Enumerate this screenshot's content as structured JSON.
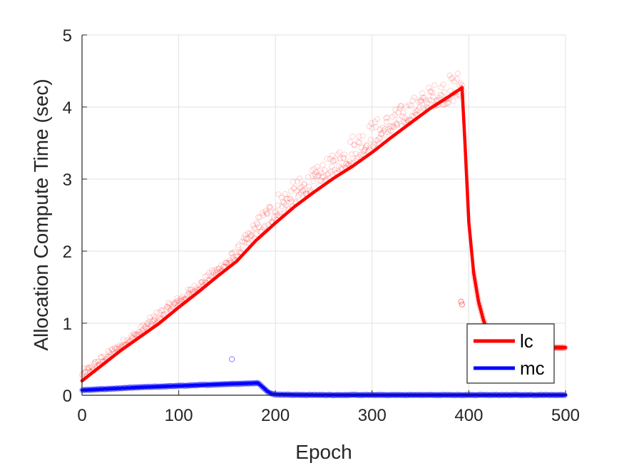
{
  "chart_data": {
    "type": "line",
    "title": "",
    "xlabel": "Epoch",
    "ylabel": "Allocation Compute Time (sec)",
    "xlim": [
      0,
      500
    ],
    "ylim": [
      0,
      5
    ],
    "xticks": [
      0,
      100,
      200,
      300,
      400,
      500
    ],
    "yticks": [
      0,
      1,
      2,
      3,
      4,
      5
    ],
    "grid": true,
    "legend_position": "bottom-right",
    "colors": {
      "lc": "#ff0000",
      "mc": "#0000ff"
    },
    "series": [
      {
        "name": "lc",
        "color": "#ff0000",
        "line": {
          "x": [
            0,
            20,
            40,
            60,
            80,
            100,
            120,
            140,
            160,
            180,
            200,
            220,
            240,
            260,
            280,
            300,
            320,
            340,
            360,
            380,
            390,
            393,
            396,
            400,
            405,
            410,
            415,
            420,
            430,
            440,
            450,
            460,
            470,
            480,
            490,
            500
          ],
          "y": [
            0.2,
            0.41,
            0.62,
            0.81,
            1.0,
            1.22,
            1.43,
            1.65,
            1.86,
            2.15,
            2.39,
            2.62,
            2.82,
            3.01,
            3.18,
            3.37,
            3.58,
            3.78,
            3.98,
            4.15,
            4.24,
            4.27,
            3.5,
            2.4,
            1.7,
            1.3,
            1.05,
            0.85,
            0.72,
            0.68,
            0.67,
            0.66,
            0.66,
            0.66,
            0.66,
            0.66
          ]
        },
        "scatter_envelope": {
          "x": [
            0,
            20,
            40,
            60,
            80,
            100,
            120,
            140,
            160,
            180,
            200,
            220,
            240,
            260,
            280,
            300,
            320,
            340,
            360,
            380,
            395
          ],
          "y_low": [
            0.22,
            0.42,
            0.64,
            0.83,
            1.02,
            1.25,
            1.45,
            1.67,
            1.88,
            2.2,
            2.42,
            2.64,
            2.85,
            3.05,
            3.22,
            3.42,
            3.62,
            3.82,
            4.0,
            4.05,
            4.15
          ],
          "y_high": [
            0.35,
            0.55,
            0.75,
            0.95,
            1.2,
            1.38,
            1.58,
            1.8,
            2.05,
            2.45,
            2.82,
            2.98,
            3.15,
            3.35,
            3.65,
            3.82,
            3.95,
            4.12,
            4.3,
            4.45,
            4.58
          ]
        },
        "outliers": [
          {
            "x": 392,
            "y": 1.3
          },
          {
            "x": 393,
            "y": 1.26
          }
        ]
      },
      {
        "name": "mc",
        "color": "#0000ff",
        "line": {
          "x": [
            0,
            30,
            60,
            90,
            120,
            150,
            175,
            182,
            188,
            192,
            196,
            200,
            220,
            250,
            300,
            350,
            400,
            450,
            500
          ],
          "y": [
            0.07,
            0.09,
            0.11,
            0.125,
            0.14,
            0.155,
            0.165,
            0.17,
            0.1,
            0.05,
            0.02,
            0.01,
            0.005,
            0.003,
            0.003,
            0.003,
            0.003,
            0.003,
            0.003
          ]
        },
        "outliers": [
          {
            "x": 155,
            "y": 0.5
          }
        ]
      }
    ]
  }
}
